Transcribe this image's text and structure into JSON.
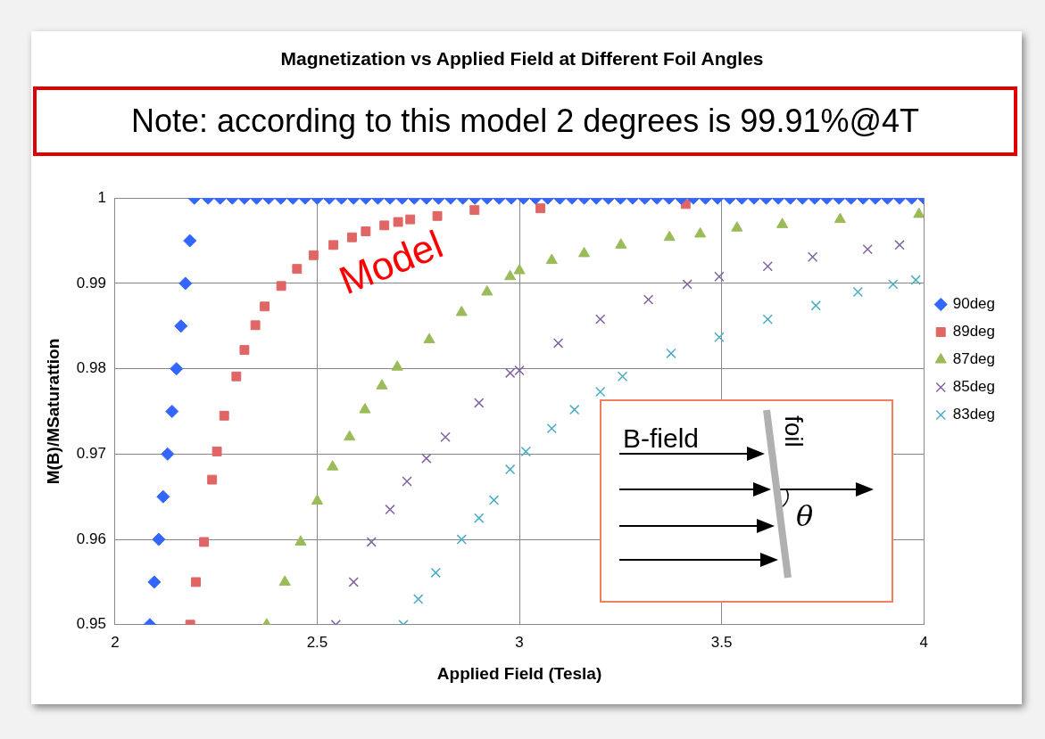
{
  "chart_data": {
    "type": "scatter",
    "title": "Magnetization vs Applied Field at Different Foil Angles",
    "xlabel": "Applied Field (Tesla)",
    "ylabel": "M(B)/MSaturattion",
    "annotations": [
      "Note: according to this model 2 degrees is 99.91%@4T",
      "Model",
      "B-field",
      "foil",
      "θ"
    ],
    "xlim": [
      2,
      4
    ],
    "xticks": [
      2,
      2.5,
      3,
      3.5,
      4
    ],
    "ylim": [
      0.95,
      1
    ],
    "yticks": [
      0.95,
      0.96,
      0.97,
      0.98,
      0.99,
      1
    ],
    "grid": true,
    "legend": "right",
    "series": [
      {
        "name": "90deg",
        "color": "#3366ff",
        "marker": "diamond",
        "x": [
          2.086,
          2.097,
          2.108,
          2.119,
          2.13,
          2.141,
          2.152,
          2.163,
          2.174,
          2.185,
          2.196,
          2.23,
          2.26,
          2.29,
          2.32,
          2.35,
          2.38,
          2.41,
          2.44,
          2.47,
          2.5,
          2.53,
          2.56,
          2.59,
          2.62,
          2.65,
          2.68,
          2.71,
          2.74,
          2.77,
          2.8,
          2.83,
          2.86,
          2.89,
          2.92,
          2.95,
          2.98,
          3.01,
          3.04,
          3.07,
          3.1,
          3.13,
          3.16,
          3.19,
          3.22,
          3.25,
          3.28,
          3.31,
          3.34,
          3.37,
          3.4,
          3.43,
          3.46,
          3.49,
          3.52,
          3.55,
          3.58,
          3.61,
          3.64,
          3.67,
          3.7,
          3.73,
          3.76,
          3.79,
          3.82,
          3.85,
          3.88,
          3.91,
          3.94,
          3.97,
          4.0
        ],
        "values": [
          0.95,
          0.955,
          0.96,
          0.965,
          0.97,
          0.975,
          0.98,
          0.985,
          0.99,
          0.995,
          1,
          1,
          1,
          1,
          1,
          1,
          1,
          1,
          1,
          1,
          1,
          1,
          1,
          1,
          1,
          1,
          1,
          1,
          1,
          1,
          1,
          1,
          1,
          1,
          1,
          1,
          1,
          1,
          1,
          1,
          1,
          1,
          1,
          1,
          1,
          1,
          1,
          1,
          1,
          1,
          1,
          1,
          1,
          1,
          1,
          1,
          1,
          1,
          1,
          1,
          1,
          1,
          1,
          1,
          1,
          1,
          1,
          1,
          1,
          1,
          1
        ]
      },
      {
        "name": "89deg",
        "color": "#e06666",
        "marker": "square",
        "x": [
          2.186,
          2.2,
          2.22,
          2.24,
          2.252,
          2.27,
          2.3,
          2.32,
          2.347,
          2.37,
          2.411,
          2.45,
          2.491,
          2.54,
          2.586,
          2.62,
          2.666,
          2.7,
          2.73,
          2.797,
          2.889,
          3.052,
          3.411
        ],
        "values": [
          0.95,
          0.955,
          0.9597,
          0.967,
          0.9703,
          0.9745,
          0.9791,
          0.9822,
          0.9851,
          0.9873,
          0.9897,
          0.9917,
          0.9933,
          0.9945,
          0.9954,
          0.9961,
          0.9968,
          0.9972,
          0.9975,
          0.9979,
          0.9986,
          0.9988,
          0.9993
        ]
      },
      {
        "name": "87deg",
        "color": "#9bbb59",
        "marker": "triangle",
        "x": [
          2.375,
          2.42,
          2.459,
          2.5,
          2.538,
          2.58,
          2.618,
          2.66,
          2.698,
          2.777,
          2.857,
          2.92,
          2.977,
          3.0,
          3.08,
          3.16,
          3.251,
          3.371,
          3.447,
          3.538,
          3.65,
          3.793,
          3.988
        ],
        "values": [
          0.95,
          0.955,
          0.9597,
          0.9645,
          0.9685,
          0.972,
          0.9752,
          0.978,
          0.9802,
          0.9834,
          0.9866,
          0.989,
          0.9908,
          0.9915,
          0.9927,
          0.9935,
          0.9945,
          0.9954,
          0.9958,
          0.9965,
          0.9969,
          0.9975,
          0.9981
        ]
      },
      {
        "name": "85deg",
        "color": "#8064a2",
        "marker": "cross",
        "x": [
          2.546,
          2.59,
          2.634,
          2.68,
          2.722,
          2.77,
          2.817,
          2.9,
          2.977,
          3.0,
          3.096,
          3.2,
          3.319,
          3.415,
          3.494,
          3.614,
          3.725,
          3.861,
          3.94
        ],
        "values": [
          0.95,
          0.955,
          0.9597,
          0.9635,
          0.9668,
          0.9695,
          0.972,
          0.976,
          0.9795,
          0.9798,
          0.983,
          0.9858,
          0.9881,
          0.9899,
          0.9908,
          0.992,
          0.9931,
          0.994,
          0.9945
        ]
      },
      {
        "name": "83deg",
        "color": "#4bacc6",
        "marker": "cross",
        "x": [
          2.713,
          2.75,
          2.793,
          2.857,
          2.9,
          2.937,
          2.977,
          3.016,
          3.08,
          3.136,
          3.2,
          3.255,
          3.375,
          3.494,
          3.614,
          3.733,
          3.837,
          3.924,
          3.98
        ],
        "values": [
          0.95,
          0.953,
          0.9561,
          0.96,
          0.9625,
          0.9646,
          0.9682,
          0.9703,
          0.973,
          0.9752,
          0.9773,
          0.9791,
          0.9818,
          0.9837,
          0.9858,
          0.9874,
          0.989,
          0.9899,
          0.9904
        ]
      }
    ]
  }
}
